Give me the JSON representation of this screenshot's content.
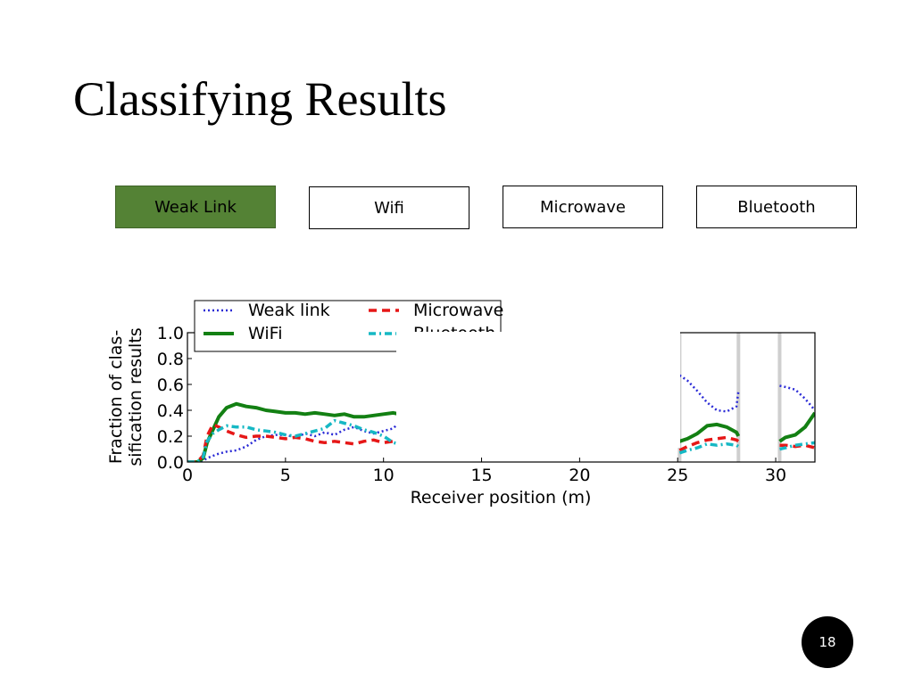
{
  "slide": {
    "title": "Classifying Results",
    "page_number": "18"
  },
  "tabs": [
    {
      "label": "Weak Link",
      "active": true
    },
    {
      "label": "Wifi",
      "active": false
    },
    {
      "label": "Microwave",
      "active": false
    },
    {
      "label": "Bluetooth",
      "active": false
    }
  ],
  "colors": {
    "active_tab": "#548235",
    "weak_link": "#2b2bd6",
    "wifi": "#138013",
    "microwave": "#e61717",
    "bluetooth": "#16b8c4"
  },
  "chart_data": {
    "type": "line",
    "title": "",
    "xlabel": "Receiver position (m)",
    "ylabel": "Fraction of clas-\nsification results",
    "xlim": [
      0,
      32
    ],
    "ylim": [
      0,
      1.0
    ],
    "xticks": [
      0,
      5,
      10,
      15,
      20,
      25,
      30
    ],
    "yticks": [
      0.0,
      0.2,
      0.4,
      0.6,
      0.8,
      1.0
    ],
    "legend_position": "top-left",
    "visible_x_ranges": [
      [
        0,
        10.8
      ],
      [
        25.1,
        28.1
      ],
      [
        30.2,
        32
      ]
    ],
    "series": [
      {
        "name": "Weak link",
        "style": "dotted",
        "color": "#2b2bd6",
        "x": [
          0,
          0.5,
          0.8,
          1.0,
          1.5,
          2,
          2.5,
          3,
          3.5,
          4,
          4.5,
          5,
          5.5,
          6,
          6.5,
          7,
          7.5,
          8,
          8.5,
          9,
          9.5,
          10,
          10.5,
          10.8,
          25.1,
          25.5,
          26,
          26.5,
          27,
          27.5,
          28,
          28.1,
          30.2,
          30.5,
          31,
          31.5,
          32
        ],
        "y": [
          0,
          0,
          0.01,
          0.03,
          0.06,
          0.08,
          0.09,
          0.12,
          0.17,
          0.2,
          0.21,
          0.21,
          0.19,
          0.22,
          0.2,
          0.23,
          0.21,
          0.25,
          0.27,
          0.24,
          0.22,
          0.24,
          0.26,
          0.31,
          0.67,
          0.63,
          0.55,
          0.46,
          0.4,
          0.39,
          0.43,
          0.55,
          0.59,
          0.58,
          0.56,
          0.49,
          0.4
        ]
      },
      {
        "name": "WiFi",
        "style": "solid",
        "color": "#138013",
        "x": [
          0,
          0.5,
          0.8,
          1.0,
          1.3,
          1.6,
          2,
          2.5,
          3,
          3.5,
          4,
          4.5,
          5,
          5.5,
          6,
          6.5,
          7,
          7.5,
          8,
          8.5,
          9,
          9.5,
          10,
          10.5,
          10.8,
          25.1,
          25.5,
          26,
          26.5,
          27,
          27.5,
          28,
          28.1,
          30.2,
          30.5,
          31,
          31.5,
          32
        ],
        "y": [
          0,
          0,
          0.03,
          0.15,
          0.25,
          0.35,
          0.42,
          0.45,
          0.43,
          0.42,
          0.4,
          0.39,
          0.38,
          0.38,
          0.37,
          0.38,
          0.37,
          0.36,
          0.37,
          0.35,
          0.35,
          0.36,
          0.37,
          0.38,
          0.37,
          0.16,
          0.18,
          0.22,
          0.28,
          0.29,
          0.27,
          0.23,
          0.2,
          0.16,
          0.19,
          0.21,
          0.27,
          0.38
        ]
      },
      {
        "name": "Microwave",
        "style": "dashed",
        "color": "#e61717",
        "x": [
          0,
          0.5,
          0.8,
          1.0,
          1.3,
          1.6,
          2,
          2.5,
          3,
          3.5,
          4,
          4.5,
          5,
          5.5,
          6,
          6.5,
          7,
          7.5,
          8,
          8.5,
          9,
          9.5,
          10,
          10.5,
          10.8,
          25.1,
          25.5,
          26,
          26.5,
          27,
          27.5,
          28,
          28.1,
          30.2,
          30.5,
          31,
          31.5,
          32
        ],
        "y": [
          0,
          0,
          0.05,
          0.2,
          0.29,
          0.27,
          0.24,
          0.21,
          0.19,
          0.2,
          0.2,
          0.19,
          0.18,
          0.19,
          0.18,
          0.16,
          0.15,
          0.16,
          0.15,
          0.14,
          0.16,
          0.17,
          0.15,
          0.16,
          0.19,
          0.09,
          0.12,
          0.15,
          0.17,
          0.18,
          0.19,
          0.17,
          0.16,
          0.13,
          0.13,
          0.12,
          0.13,
          0.11
        ]
      },
      {
        "name": "Bluetooth",
        "style": "dashdot",
        "color": "#16b8c4",
        "x": [
          0,
          0.5,
          0.8,
          1.0,
          1.3,
          1.6,
          2,
          2.5,
          3,
          3.5,
          4,
          4.5,
          5,
          5.5,
          6,
          6.5,
          7,
          7.5,
          8,
          8.5,
          9,
          9.5,
          10,
          10.5,
          10.8,
          25.1,
          25.5,
          26,
          26.5,
          27,
          27.5,
          28,
          28.1,
          30.2,
          30.5,
          31,
          31.5,
          32
        ],
        "y": [
          0,
          0,
          0.04,
          0.16,
          0.22,
          0.25,
          0.28,
          0.27,
          0.27,
          0.25,
          0.24,
          0.23,
          0.21,
          0.2,
          0.22,
          0.24,
          0.26,
          0.32,
          0.3,
          0.28,
          0.25,
          0.23,
          0.2,
          0.15,
          0.14,
          0.07,
          0.09,
          0.11,
          0.14,
          0.13,
          0.14,
          0.13,
          0.12,
          0.1,
          0.11,
          0.13,
          0.14,
          0.15
        ]
      }
    ]
  }
}
